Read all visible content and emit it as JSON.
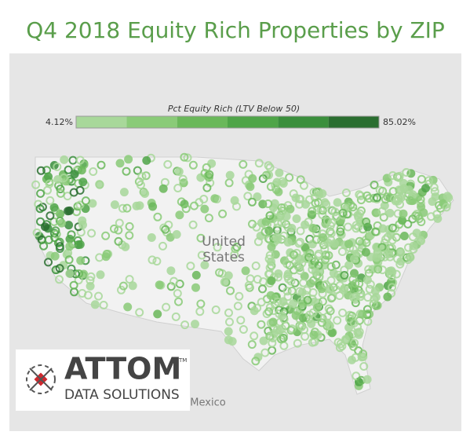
{
  "title": "Q4 2018 Equity Rich Properties by ZIP",
  "legend": {
    "title": "Pct Equity Rich (LTV Below 50)",
    "min_label": "4.12%",
    "max_label": "85.02%",
    "colors": [
      "#a8d89a",
      "#8acb78",
      "#6ab85a",
      "#4fa548",
      "#3a8f3c",
      "#2a6e30"
    ]
  },
  "map_labels": {
    "country_line1": "United",
    "country_line2": "States",
    "neighbor": "Mexico"
  },
  "logo": {
    "brand": "ATTOM",
    "trademark": "TM",
    "tagline": "DATA SOLUTIONS"
  }
}
